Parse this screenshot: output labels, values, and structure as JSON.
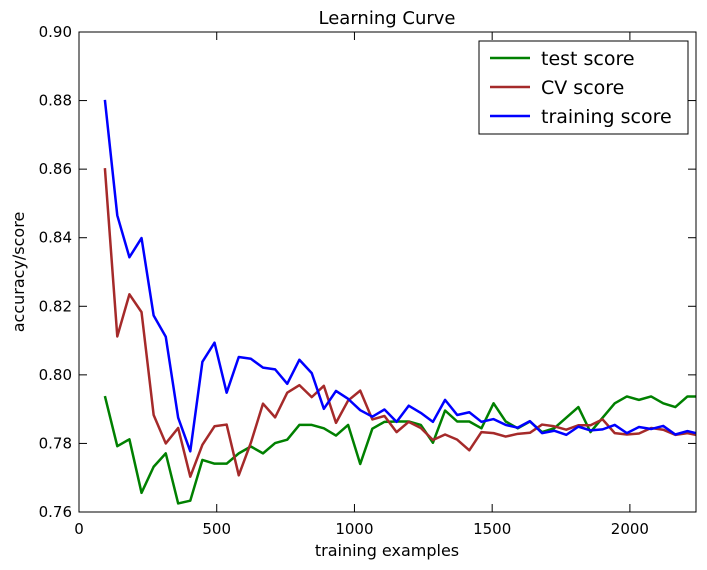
{
  "chart_data": {
    "type": "line",
    "title": "Learning Curve",
    "xlabel": "training examples",
    "ylabel": "accuracy/score",
    "xlim": [
      0,
      2240
    ],
    "ylim": [
      0.76,
      0.9
    ],
    "xticks": [
      0,
      500,
      1000,
      1500,
      2000
    ],
    "yticks": [
      0.76,
      0.78,
      0.8,
      0.82,
      0.84,
      0.86,
      0.88,
      0.9
    ],
    "xtick_labels": [
      "0",
      "500",
      "1000",
      "1500",
      "2000"
    ],
    "ytick_labels": [
      "0.76",
      "0.78",
      "0.80",
      "0.82",
      "0.84",
      "0.86",
      "0.88",
      "0.90"
    ],
    "grid": false,
    "legend_position": "top-right",
    "x": [
      94,
      139,
      183,
      227,
      271,
      315,
      360,
      404,
      448,
      492,
      536,
      580,
      624,
      668,
      712,
      756,
      800,
      845,
      889,
      933,
      977,
      1021,
      1065,
      1109,
      1153,
      1197,
      1241,
      1285,
      1329,
      1373,
      1417,
      1461,
      1505,
      1549,
      1593,
      1637,
      1681,
      1725,
      1769,
      1813,
      1857,
      1901,
      1945,
      1989,
      2033,
      2077,
      2121,
      2165,
      2209,
      2240
    ],
    "series": [
      {
        "name": "test score",
        "color": "#008000",
        "values": [
          0.7938,
          0.7792,
          0.7812,
          0.7656,
          0.7732,
          0.7771,
          0.7625,
          0.7633,
          0.7752,
          0.7741,
          0.7741,
          0.7771,
          0.7791,
          0.7771,
          0.7801,
          0.7811,
          0.7854,
          0.7854,
          0.7844,
          0.7823,
          0.7854,
          0.774,
          0.7843,
          0.7863,
          0.7864,
          0.7864,
          0.7854,
          0.7802,
          0.7896,
          0.7864,
          0.7864,
          0.7844,
          0.7917,
          0.7864,
          0.7844,
          0.7864,
          0.7833,
          0.7844,
          0.7875,
          0.7906,
          0.7833,
          0.7875,
          0.7917,
          0.7937,
          0.7927,
          0.7937,
          0.7917,
          0.7906,
          0.7937,
          0.7937
        ]
      },
      {
        "name": "CV score",
        "color": "#a52a2a",
        "values": [
          0.8603,
          0.8112,
          0.8235,
          0.8183,
          0.7883,
          0.78,
          0.7845,
          0.7703,
          0.7796,
          0.785,
          0.7855,
          0.7707,
          0.7802,
          0.7916,
          0.7876,
          0.7948,
          0.797,
          0.7935,
          0.7968,
          0.786,
          0.7925,
          0.7954,
          0.787,
          0.788,
          0.7833,
          0.7863,
          0.7845,
          0.781,
          0.7826,
          0.7811,
          0.778,
          0.7833,
          0.783,
          0.782,
          0.7828,
          0.7831,
          0.7855,
          0.785,
          0.784,
          0.7853,
          0.7853,
          0.787,
          0.783,
          0.7826,
          0.7829,
          0.7845,
          0.784,
          0.7825,
          0.783,
          0.7825
        ]
      },
      {
        "name": "training score",
        "color": "#0000ff",
        "values": [
          0.8802,
          0.8465,
          0.8343,
          0.8399,
          0.8173,
          0.8111,
          0.7875,
          0.7777,
          0.8038,
          0.8094,
          0.7948,
          0.8052,
          0.8047,
          0.8021,
          0.8016,
          0.7974,
          0.8044,
          0.8005,
          0.7901,
          0.7953,
          0.793,
          0.7897,
          0.7878,
          0.7899,
          0.7863,
          0.791,
          0.7889,
          0.7863,
          0.7927,
          0.7883,
          0.7891,
          0.7863,
          0.7871,
          0.7854,
          0.7846,
          0.7865,
          0.783,
          0.7837,
          0.7825,
          0.7849,
          0.7838,
          0.7841,
          0.7854,
          0.783,
          0.7848,
          0.7842,
          0.7851,
          0.7826,
          0.7836,
          0.783
        ]
      }
    ]
  }
}
